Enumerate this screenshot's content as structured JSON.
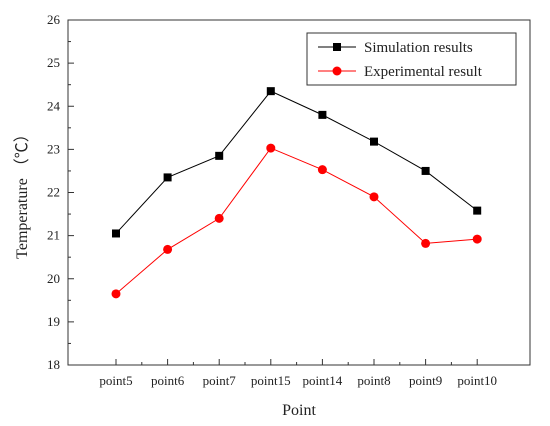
{
  "chart_data": {
    "type": "line",
    "xlabel": "Point",
    "ylabel": "Temperature （℃）",
    "categories": [
      "point5",
      "point6",
      "point7",
      "point15",
      "point14",
      "point8",
      "point9",
      "point10"
    ],
    "ylim": [
      18,
      26
    ],
    "yticks": [
      18,
      19,
      20,
      21,
      22,
      23,
      24,
      25,
      26
    ],
    "grid": false,
    "legend_position": "top-right",
    "series": [
      {
        "name": "Simulation results",
        "color": "#000000",
        "marker": "square",
        "values": [
          21.05,
          22.35,
          22.85,
          24.35,
          23.8,
          23.18,
          22.5,
          21.58
        ]
      },
      {
        "name": "Experimental result",
        "color": "#ff0000",
        "marker": "circle",
        "values": [
          19.65,
          20.68,
          21.4,
          23.03,
          22.53,
          21.9,
          20.82,
          20.92
        ]
      }
    ]
  }
}
